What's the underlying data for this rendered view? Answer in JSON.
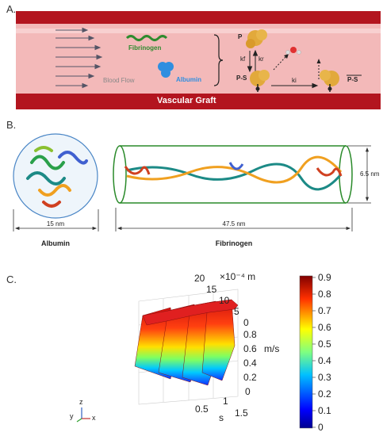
{
  "panels": {
    "a": "A.",
    "b": "B.",
    "c": "C."
  },
  "panel_a": {
    "fibrinogen": "Fibrinogen",
    "albumin": "Albumin",
    "blood_flow": "Blood Flow",
    "vascular_graft": "Vascular Graft",
    "state_p": "P",
    "state_ps": "P-S",
    "state_ps_bar": "P-S",
    "kf": "kf",
    "kr": "kr",
    "ki": "ki",
    "colors": {
      "vessel_wall": "#b3151f",
      "lumen": "#f3b9b9",
      "fibrinogen": "#2e8b2e",
      "albumin": "#2f8ee0",
      "protein": "#e2a93b"
    }
  },
  "panel_b": {
    "albumin_label": "Albumin",
    "fibrinogen_label": "Fibrinogen",
    "albumin_size": "15 nm",
    "fibrinogen_length": "47.5 nm",
    "fibrinogen_diameter": "6.5 nm"
  },
  "panel_c": {
    "top_axis_ticks": [
      "20",
      "15",
      "10",
      "5",
      "0"
    ],
    "top_axis_unit": "×10⁻⁴ m",
    "z_ticks": [
      "0.8",
      "0.6",
      "0.4",
      "0.2",
      "0"
    ],
    "z_unit": "m/s",
    "s_ticks": [
      "1.5",
      "1",
      "0.5"
    ],
    "s_label": "s",
    "colorbar_ticks": [
      "0.9",
      "0.8",
      "0.7",
      "0.6",
      "0.5",
      "0.4",
      "0.3",
      "0.2",
      "0.1",
      "0"
    ],
    "triad": {
      "x": "x",
      "y": "y",
      "z": "z"
    }
  }
}
